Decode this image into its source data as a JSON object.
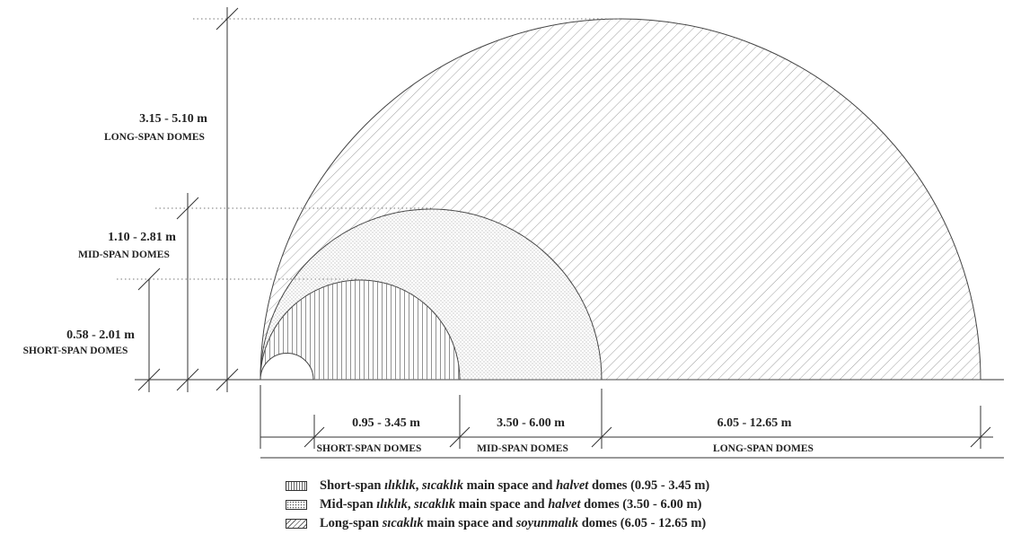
{
  "heights": {
    "short": {
      "range": "0.58 - 2.01 m",
      "label": "SHORT-SPAN DOMES"
    },
    "mid": {
      "range": "1.10 - 2.81 m",
      "label": "MID-SPAN DOMES"
    },
    "long": {
      "range": "3.15 - 5.10 m",
      "label": "LONG-SPAN DOMES"
    }
  },
  "spans": {
    "short": {
      "range": "0.95 - 3.45 m",
      "label": "SHORT-SPAN DOMES"
    },
    "mid": {
      "range": "3.50 - 6.00 m",
      "label": "MID-SPAN DOMES"
    },
    "long": {
      "range": "6.05 - 12.65 m",
      "label": "LONG-SPAN DOMES"
    }
  },
  "legend": [
    {
      "pattern": "vertical-lines",
      "pre": "Short-span ",
      "i1": "ılıklık",
      "sep": ", ",
      "i2": "sıcaklık",
      "mid": " main space and ",
      "i3": "halvet",
      "post": " domes (0.95 - 3.45 m)"
    },
    {
      "pattern": "dots",
      "pre": "Mid-span ",
      "i1": "ılıklık",
      "sep": ", ",
      "i2": "sıcaklık",
      "mid": " main space and ",
      "i3": "halvet",
      "post": " domes (3.50 - 6.00 m)"
    },
    {
      "pattern": "diagonal-lines",
      "pre": "Long-span ",
      "i1": "",
      "sep": "",
      "i2": "sıcaklık",
      "mid": " main space and ",
      "i3": "soyunmalık",
      "post": " domes (6.05 - 12.65 m)"
    }
  ]
}
